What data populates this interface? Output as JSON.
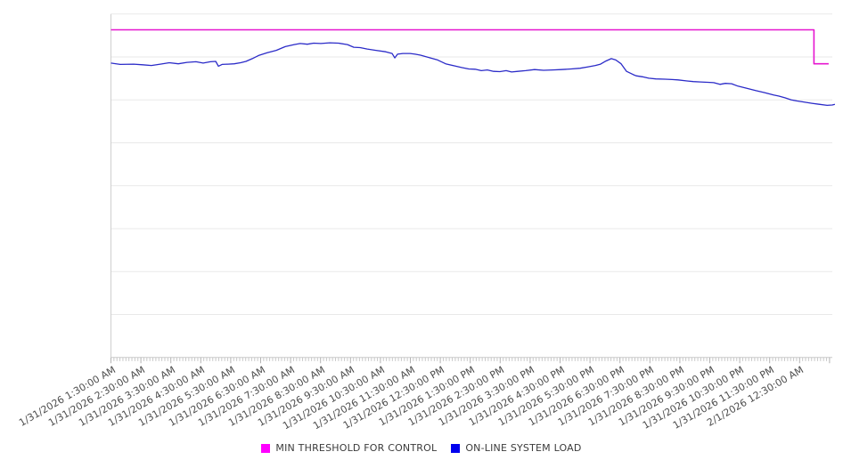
{
  "legend": {
    "items": [
      {
        "label": "MIN THRESHOLD FOR CONTROL",
        "color": "#ff00ff"
      },
      {
        "label": "ON-LINE SYSTEM LOAD",
        "color": "#0000ee"
      }
    ]
  },
  "chart_data": {
    "type": "line",
    "title": "",
    "xlabel": "",
    "ylabel": "",
    "x_unit": "hours since first tick (1 hour per labeled tick, minor ticks every 6 minutes)",
    "x_range": [
      0,
      24.2
    ],
    "y_range": [
      0,
      100
    ],
    "y_tick_labels_visible": false,
    "grid": "horizontal-only",
    "gridline_count": 9,
    "legend_position": "bottom",
    "x_tick_labels": [
      "1/31/2026 1:30:00 AM",
      "1/31/2026 2:30:00 AM",
      "1/31/2026 3:30:00 AM",
      "1/31/2026 4:30:00 AM",
      "1/31/2026 5:30:00 AM",
      "1/31/2026 6:30:00 AM",
      "1/31/2026 7:30:00 AM",
      "1/31/2026 8:30:00 AM",
      "1/31/2026 9:30:00 AM",
      "1/31/2026 10:30:00 AM",
      "1/31/2026 11:30:00 AM",
      "1/31/2026 12:30:00 PM",
      "1/31/2026 1:30:00 PM",
      "1/31/2026 2:30:00 PM",
      "1/31/2026 3:30:00 PM",
      "1/31/2026 4:30:00 PM",
      "1/31/2026 5:30:00 PM",
      "1/31/2026 6:30:00 PM",
      "1/31/2026 7:30:00 PM",
      "1/31/2026 8:30:00 PM",
      "1/31/2026 9:30:00 PM",
      "1/31/2026 10:30:00 PM",
      "1/31/2026 11:30:00 PM",
      "2/1/2026 12:30:00 AM"
    ],
    "series": [
      {
        "name": "MIN THRESHOLD FOR CONTROL",
        "color": "#e616d0",
        "width": 1.6,
        "points": [
          [
            0,
            95.4
          ],
          [
            23.48,
            95.4
          ],
          [
            23.48,
            85.5
          ],
          [
            23.97,
            85.5
          ]
        ]
      },
      {
        "name": "ON-LINE SYSTEM LOAD",
        "color": "#2b2bc8",
        "width": 1.3,
        "points": [
          [
            0,
            85.7
          ],
          [
            0.31,
            85.3
          ],
          [
            0.76,
            85.4
          ],
          [
            1.06,
            85.2
          ],
          [
            1.35,
            85.0
          ],
          [
            1.65,
            85.4
          ],
          [
            1.95,
            85.8
          ],
          [
            2.25,
            85.5
          ],
          [
            2.54,
            85.9
          ],
          [
            2.84,
            86.1
          ],
          [
            3.08,
            85.7
          ],
          [
            3.32,
            86.1
          ],
          [
            3.5,
            86.2
          ],
          [
            3.59,
            84.8
          ],
          [
            3.71,
            85.3
          ],
          [
            3.91,
            85.4
          ],
          [
            4.12,
            85.5
          ],
          [
            4.33,
            85.8
          ],
          [
            4.51,
            86.2
          ],
          [
            4.72,
            87.0
          ],
          [
            4.93,
            87.9
          ],
          [
            5.22,
            88.7
          ],
          [
            5.52,
            89.4
          ],
          [
            5.82,
            90.5
          ],
          [
            6.12,
            91.1
          ],
          [
            6.32,
            91.4
          ],
          [
            6.56,
            91.2
          ],
          [
            6.77,
            91.5
          ],
          [
            7.01,
            91.4
          ],
          [
            7.31,
            91.6
          ],
          [
            7.6,
            91.5
          ],
          [
            7.9,
            91.1
          ],
          [
            8.11,
            90.3
          ],
          [
            8.32,
            90.2
          ],
          [
            8.56,
            89.8
          ],
          [
            8.85,
            89.4
          ],
          [
            9.18,
            89.0
          ],
          [
            9.39,
            88.5
          ],
          [
            9.48,
            87.2
          ],
          [
            9.57,
            88.3
          ],
          [
            9.75,
            88.5
          ],
          [
            9.99,
            88.5
          ],
          [
            10.16,
            88.3
          ],
          [
            10.34,
            88.0
          ],
          [
            10.67,
            87.2
          ],
          [
            10.91,
            86.6
          ],
          [
            11.18,
            85.5
          ],
          [
            11.47,
            84.9
          ],
          [
            11.71,
            84.4
          ],
          [
            11.95,
            84.0
          ],
          [
            12.16,
            83.9
          ],
          [
            12.37,
            83.5
          ],
          [
            12.57,
            83.7
          ],
          [
            12.78,
            83.3
          ],
          [
            12.99,
            83.2
          ],
          [
            13.2,
            83.5
          ],
          [
            13.38,
            83.1
          ],
          [
            13.59,
            83.3
          ],
          [
            13.85,
            83.5
          ],
          [
            14.15,
            83.8
          ],
          [
            14.45,
            83.6
          ],
          [
            14.75,
            83.7
          ],
          [
            15.04,
            83.8
          ],
          [
            15.37,
            84.0
          ],
          [
            15.67,
            84.2
          ],
          [
            15.94,
            84.6
          ],
          [
            16.18,
            85.0
          ],
          [
            16.35,
            85.4
          ],
          [
            16.53,
            86.3
          ],
          [
            16.71,
            87.0
          ],
          [
            16.86,
            86.6
          ],
          [
            17.04,
            85.5
          ],
          [
            17.22,
            83.3
          ],
          [
            17.43,
            82.4
          ],
          [
            17.54,
            82.0
          ],
          [
            17.75,
            81.7
          ],
          [
            17.96,
            81.3
          ],
          [
            18.2,
            81.1
          ],
          [
            18.5,
            81.0
          ],
          [
            18.74,
            80.9
          ],
          [
            18.94,
            80.8
          ],
          [
            19.24,
            80.5
          ],
          [
            19.45,
            80.3
          ],
          [
            19.69,
            80.2
          ],
          [
            19.93,
            80.1
          ],
          [
            20.13,
            80.0
          ],
          [
            20.34,
            79.5
          ],
          [
            20.52,
            79.8
          ],
          [
            20.73,
            79.7
          ],
          [
            20.94,
            79.0
          ],
          [
            21.18,
            78.5
          ],
          [
            21.53,
            77.7
          ],
          [
            21.83,
            77.1
          ],
          [
            22.13,
            76.4
          ],
          [
            22.31,
            76.1
          ],
          [
            22.51,
            75.6
          ],
          [
            22.72,
            75.0
          ],
          [
            22.9,
            74.7
          ],
          [
            23.11,
            74.4
          ],
          [
            23.41,
            74.0
          ],
          [
            23.65,
            73.7
          ],
          [
            23.92,
            73.4
          ],
          [
            24.09,
            73.5
          ],
          [
            24.18,
            73.7
          ]
        ]
      }
    ]
  }
}
